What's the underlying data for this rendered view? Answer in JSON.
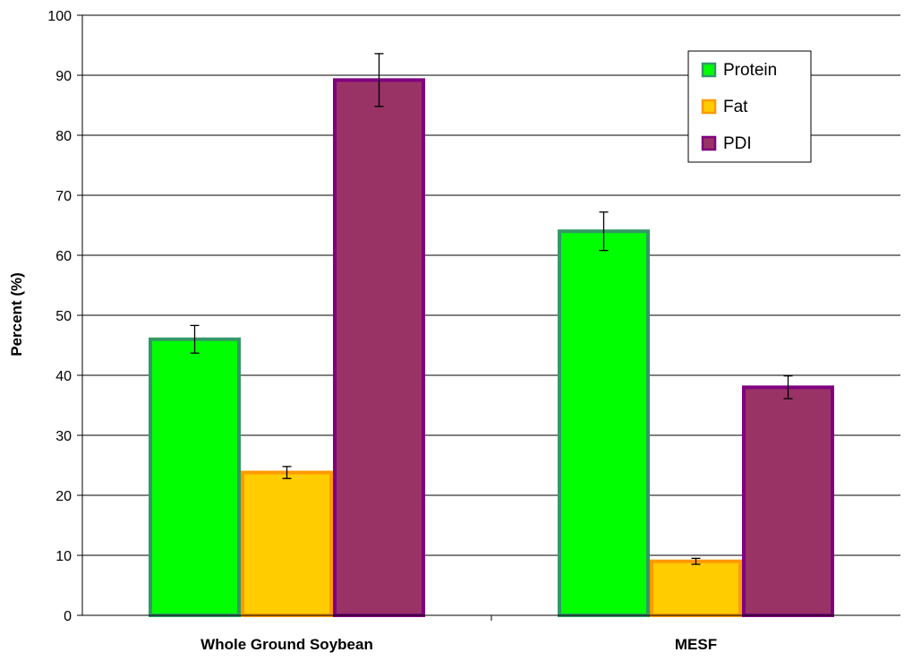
{
  "chart_data": {
    "type": "bar",
    "title": "",
    "xlabel": "",
    "ylabel": "Percent (%)",
    "ylim": [
      0,
      100
    ],
    "yticks": [
      0,
      10,
      20,
      30,
      40,
      50,
      60,
      70,
      80,
      90,
      100
    ],
    "categories": [
      "Whole Ground Soybean",
      "MESF"
    ],
    "series": [
      {
        "name": "Protein",
        "values": [
          46,
          64
        ],
        "errors": [
          2.3,
          3.2
        ],
        "fill": "#00ff00",
        "stroke": "#339966"
      },
      {
        "name": "Fat",
        "values": [
          23.8,
          9
        ],
        "errors": [
          1.0,
          0.5
        ],
        "fill": "#ffcc00",
        "stroke": "#ff9900"
      },
      {
        "name": "PDI",
        "values": [
          89.2,
          38
        ],
        "errors": [
          4.4,
          1.9
        ],
        "fill": "#993366",
        "stroke": "#800080"
      }
    ],
    "grid": true,
    "legend_position": "top-right"
  }
}
